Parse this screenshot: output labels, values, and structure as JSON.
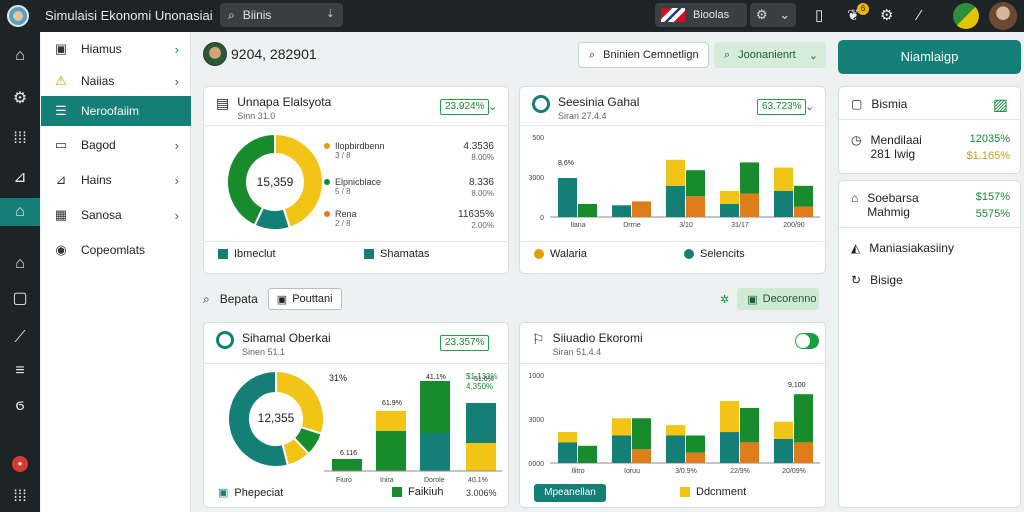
{
  "app": {
    "title": "Simulaisi Ekonomi Unonasiai"
  },
  "search": {
    "value": "Biinis"
  },
  "lang": {
    "label": "Bioolas"
  },
  "notifications": {
    "count": "6"
  },
  "sidebar": {
    "items": [
      {
        "label": "Hiamus",
        "icon": "chart-icon"
      },
      {
        "label": "Naiias",
        "icon": "warning-icon"
      },
      {
        "label": "Neroofaiim",
        "icon": "list-icon"
      },
      {
        "label": "Bagod",
        "icon": "folder-icon"
      },
      {
        "label": "Hains",
        "icon": "chart-line-icon"
      },
      {
        "label": "Sanosa",
        "icon": "grid-icon"
      },
      {
        "label": "Copeomlats",
        "icon": "pin-icon"
      }
    ]
  },
  "header": {
    "user": "9204, 282901",
    "pill1": "Bninien Cemnetlign",
    "pill2": "Joonanienrt",
    "cta": "Niamlaigp"
  },
  "card1": {
    "title": "Unnapa Elalsyota",
    "sub": "Sinn 31.0",
    "pct": "23.924%",
    "center": "15,359",
    "rows": [
      {
        "label": "Ilopbirdbenn",
        "sub": "3 / 8",
        "value": "4.3536",
        "sub2": "8.00%"
      },
      {
        "label": "Elpnicblace",
        "sub": "5 / 8",
        "value": "8.336",
        "sub2": "8.00%"
      },
      {
        "label": "Rena",
        "sub": "2 / 8",
        "value": "11635%",
        "sub2": "2.00%"
      }
    ],
    "legend1": "Ibmeclut",
    "legend2": "Shamatas",
    "chart_data": {
      "type": "pie",
      "values": [
        45,
        12,
        43
      ],
      "colors": [
        "#f2c416",
        "#137f77",
        "#188b2c"
      ]
    }
  },
  "card2": {
    "title": "Seesinia Gahal",
    "sub": "Siran 27.4.4",
    "pct": "63.723%",
    "legend1": "Walaria",
    "legend2": "Selencits",
    "chart_data": {
      "type": "bar",
      "categories": [
        "Ilana",
        "Drrne",
        "3/10",
        "31/17",
        "200/90"
      ],
      "ylim": [
        0,
        500
      ],
      "ticks": [
        "500",
        "3000",
        "0"
      ],
      "top_label": "8,6%",
      "series": [
        {
          "values": [
            150,
            45,
            120,
            50,
            100
          ],
          "color": "#137f77"
        },
        {
          "values": [
            0,
            60,
            80,
            90,
            40
          ],
          "color": "#e07d1b"
        },
        {
          "values": [
            0,
            0,
            100,
            50,
            90
          ],
          "color": "#f2c416"
        },
        {
          "values": [
            50,
            0,
            100,
            120,
            80
          ],
          "color": "#188b2c"
        }
      ]
    }
  },
  "toolbar": {
    "title": "Bepata",
    "btn": "Pouttani",
    "right_btn": "Decorenno"
  },
  "card3": {
    "title": "Sihamal Oberkai",
    "sub": "Sinen 51.1",
    "pct": "23.357%",
    "center": "12,355",
    "legend": "Phepeciat",
    "legend2": "Faikiuh",
    "label_top": "31%",
    "b_values": [
      "6.116",
      "61.9%",
      "41.1%",
      "51.6%"
    ],
    "right_labels": [
      "$1.133%",
      "4.350%"
    ],
    "xlabels": [
      "Fiuro",
      "Inira",
      "Dorole",
      "40.1%"
    ],
    "bottom": "3.006%",
    "chart_data": {
      "type": "pie",
      "values": [
        30,
        8,
        8,
        54
      ],
      "colors": [
        "#f2c416",
        "#188b2c",
        "#f2c416",
        "#137f77"
      ]
    }
  },
  "card4": {
    "title": "Siiuadio Ekoromi",
    "sub": "Siran 51.4.4",
    "btn": "Mpeanellan",
    "legend": "Ddcnment",
    "chart_data": {
      "type": "bar",
      "categories": [
        "Ilitro",
        "Ioruu",
        "3/0.9%",
        "22/9%",
        "20/09%"
      ],
      "ticks": [
        "1000",
        "3000",
        "0000"
      ],
      "top_label": "9,100",
      "series": [
        {
          "values": [
            60,
            80,
            80,
            90,
            70
          ],
          "color": "#137f77"
        },
        {
          "values": [
            0,
            40,
            30,
            60,
            60
          ],
          "color": "#e07d1b"
        },
        {
          "values": [
            30,
            50,
            30,
            90,
            50
          ],
          "color": "#f2c416"
        },
        {
          "values": [
            50,
            90,
            50,
            100,
            140
          ],
          "color": "#188b2c"
        }
      ]
    }
  },
  "right": {
    "p1": {
      "title": "Bismia",
      "r2": "Mendilaai",
      "r2sub": "281 Iwig",
      "v1": "12035%",
      "v2": "$1.165%"
    },
    "p2": {
      "r1": "Soebarsa",
      "r1sub": "Mahmig",
      "v1": "$157%",
      "v2": "5575%",
      "r2": "Maniasiakasiiny",
      "r3": "Bisige"
    }
  }
}
